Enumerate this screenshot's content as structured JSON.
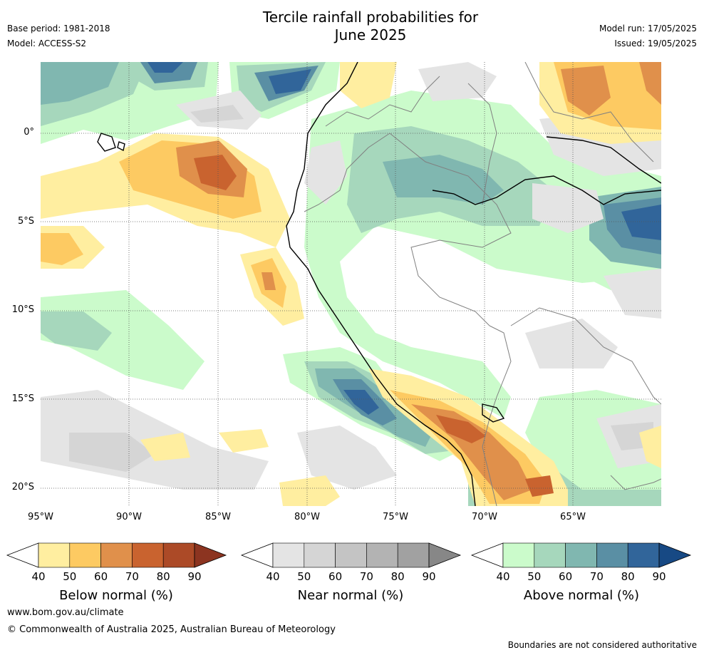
{
  "header": {
    "title_line1": "Tercile rainfall probabilities for",
    "title_line2": "June 2025",
    "base_period": "Base period: 1981-2018",
    "model": "Model: ACCESS-S2",
    "model_run": "Model run: 17/05/2025",
    "issued": "Issued: 19/05/2025"
  },
  "map": {
    "lat_labels": [
      "0°",
      "5°S",
      "10°S",
      "15°S",
      "20°S"
    ],
    "lon_labels": [
      "95°W",
      "90°W",
      "85°W",
      "80°W",
      "75°W",
      "70°W",
      "65°W"
    ]
  },
  "colorbars": [
    {
      "label": "Below normal (%)",
      "ticks": [
        "40",
        "50",
        "60",
        "70",
        "80",
        "90"
      ],
      "colors": [
        "#ffeea0",
        "#fdca62",
        "#e0904b",
        "#c9632f",
        "#ac4a27"
      ],
      "extend_color": "#8c3420"
    },
    {
      "label": "Near normal (%)",
      "ticks": [
        "40",
        "50",
        "60",
        "70",
        "80",
        "90"
      ],
      "colors": [
        "#e4e4e4",
        "#d5d5d5",
        "#c4c4c4",
        "#b3b3b3",
        "#a1a1a1"
      ],
      "extend_color": "#878787"
    },
    {
      "label": "Above normal (%)",
      "ticks": [
        "40",
        "50",
        "60",
        "70",
        "80",
        "90"
      ],
      "colors": [
        "#cbfbcb",
        "#a6d7bc",
        "#80b7b0",
        "#5a8fa4",
        "#31659a"
      ],
      "extend_color": "#174984"
    }
  ],
  "footer": {
    "url": "www.bom.gov.au/climate",
    "copyright": "© Commonwealth of Australia 2025, Australian Bureau of Meteorology",
    "disclaimer": "Boundaries are not considered authoritative"
  }
}
